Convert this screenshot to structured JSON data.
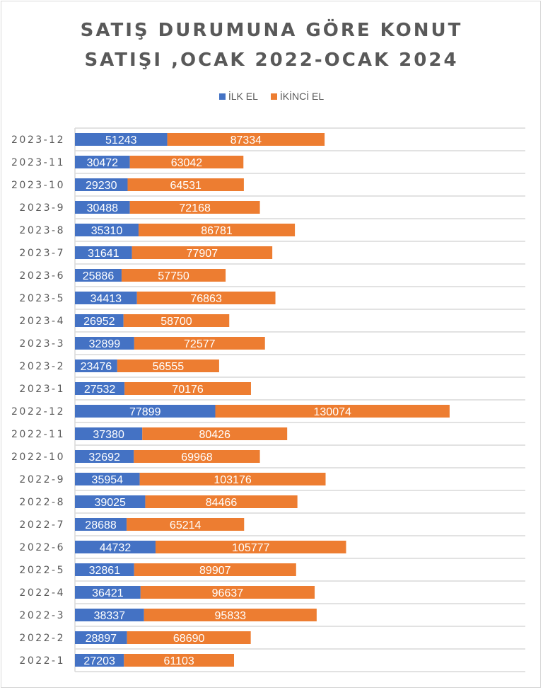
{
  "chart_data": {
    "type": "bar",
    "orientation": "horizontal",
    "stacked": true,
    "title_lines": [
      "SATIŞ DURUMUNA GÖRE KONUT",
      "SATIŞI ,OCAK 2022-OCAK 2024"
    ],
    "xlabel": "",
    "ylabel": "",
    "xlim": [
      0,
      250000
    ],
    "grid": true,
    "legend_position": "top",
    "categories": [
      "2023-12",
      "2023-11",
      "2023-10",
      "2023-9",
      "2023-8",
      "2023-7",
      "2023-6",
      "2023-5",
      "2023-4",
      "2023-3",
      "2023-2",
      "2023-1",
      "2022-12",
      "2022-11",
      "2022-10",
      "2022-9",
      "2022-8",
      "2022-7",
      "2022-6",
      "2022-5",
      "2022-4",
      "2022-3",
      "2022-2",
      "2022-1"
    ],
    "series": [
      {
        "name": "İLK EL",
        "color": "#4472c4",
        "values": [
          51243,
          30472,
          29230,
          30488,
          35310,
          31641,
          25886,
          34413,
          26952,
          32899,
          23476,
          27532,
          77899,
          37380,
          32692,
          35954,
          39025,
          28688,
          44732,
          32861,
          36421,
          38337,
          28897,
          27203
        ]
      },
      {
        "name": "İKİNCİ EL",
        "color": "#ed7d31",
        "values": [
          87334,
          63042,
          64531,
          72168,
          86781,
          77907,
          57750,
          76863,
          58700,
          72577,
          56555,
          70176,
          130074,
          80426,
          69968,
          103176,
          84466,
          65214,
          105777,
          89907,
          96637,
          95833,
          68690,
          61103
        ]
      }
    ]
  }
}
